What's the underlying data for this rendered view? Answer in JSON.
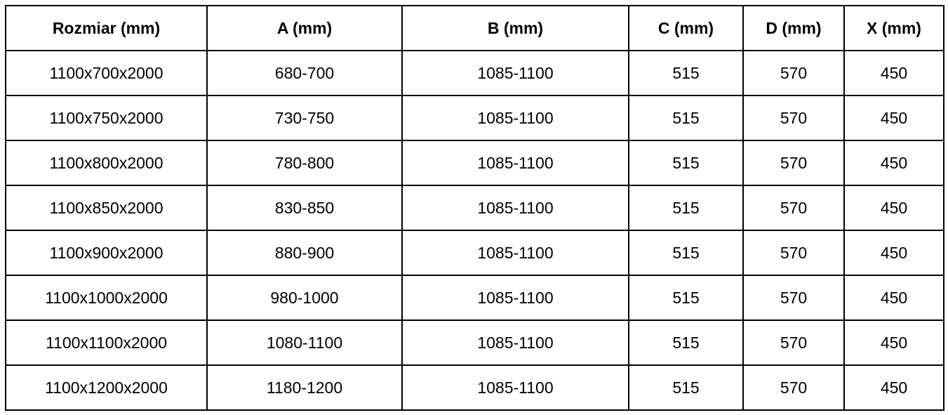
{
  "table": {
    "headers": [
      "Rozmiar (mm)",
      "A (mm)",
      "B (mm)",
      "C (mm)",
      "D (mm)",
      "X (mm)"
    ],
    "rows": [
      [
        "1100x700x2000",
        "680-700",
        "1085-1100",
        "515",
        "570",
        "450"
      ],
      [
        "1100x750x2000",
        "730-750",
        "1085-1100",
        "515",
        "570",
        "450"
      ],
      [
        "1100x800x2000",
        "780-800",
        "1085-1100",
        "515",
        "570",
        "450"
      ],
      [
        "1100x850x2000",
        "830-850",
        "1085-1100",
        "515",
        "570",
        "450"
      ],
      [
        "1100x900x2000",
        "880-900",
        "1085-1100",
        "515",
        "570",
        "450"
      ],
      [
        "1100x1000x2000",
        "980-1000",
        "1085-1100",
        "515",
        "570",
        "450"
      ],
      [
        "1100x1100x2000",
        "1080-1100",
        "1085-1100",
        "515",
        "570",
        "450"
      ],
      [
        "1100x1200x2000",
        "1180-1200",
        "1085-1100",
        "515",
        "570",
        "450"
      ]
    ]
  }
}
